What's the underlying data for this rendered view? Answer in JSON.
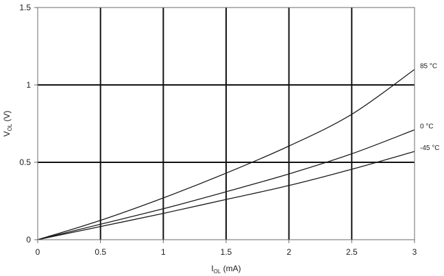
{
  "chart_data": {
    "type": "line",
    "xlabel": {
      "main": "I",
      "sub": "OL",
      "unit": " (mA)"
    },
    "ylabel": {
      "main": "V",
      "sub": "OL",
      "unit": " (V)"
    },
    "xlim": [
      0,
      3
    ],
    "ylim": [
      0,
      1.5
    ],
    "xticks": [
      0,
      0.5,
      1,
      1.5,
      2,
      2.5,
      3
    ],
    "xtick_labels": [
      "0",
      "0.5",
      "1",
      "1.5",
      "2",
      "2.5",
      "3"
    ],
    "yticks": [
      0,
      0.5,
      1,
      1.5
    ],
    "ytick_labels": [
      "0",
      "0.5",
      "1",
      "1.5"
    ],
    "grid": true,
    "series": [
      {
        "name": "85 °C",
        "x": [
          0,
          0.5,
          1,
          1.5,
          2,
          2.5,
          3
        ],
        "y": [
          0,
          0.125,
          0.27,
          0.43,
          0.605,
          0.81,
          1.1
        ]
      },
      {
        "name": "0 °C",
        "x": [
          0,
          0.5,
          1,
          1.5,
          2,
          2.5,
          3
        ],
        "y": [
          0,
          0.1,
          0.2,
          0.31,
          0.425,
          0.555,
          0.71
        ]
      },
      {
        "name": "-45 °C",
        "x": [
          0,
          0.5,
          1,
          1.5,
          2,
          2.5,
          3
        ],
        "y": [
          0,
          0.085,
          0.17,
          0.26,
          0.35,
          0.455,
          0.57
        ]
      }
    ]
  }
}
